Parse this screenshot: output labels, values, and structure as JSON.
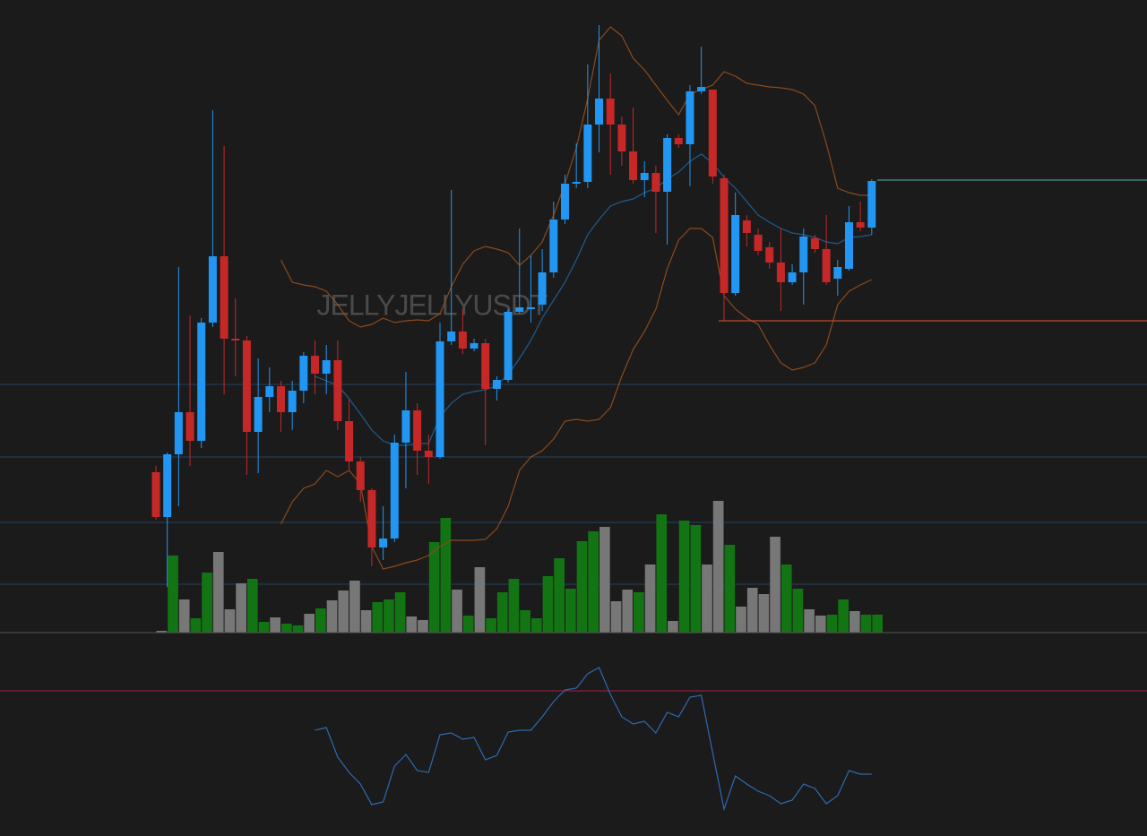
{
  "chart_data": {
    "type": "candlestick",
    "watermark": "JELLYJELLYUSDT",
    "ylim": [
      67,
      1000
    ],
    "up_color": "#2196f3",
    "down_color": "#c62828",
    "open": [
      473,
      423,
      493,
      540,
      508,
      640,
      714,
      622,
      620,
      518,
      557,
      569,
      540,
      564,
      603,
      583,
      598,
      530,
      485,
      453,
      389,
      399,
      506,
      542,
      497,
      490,
      619,
      630,
      611,
      617,
      566,
      576,
      652,
      655,
      660,
      696,
      755,
      795,
      797,
      861,
      890,
      861,
      831,
      799,
      807,
      786,
      846,
      839,
      898,
      900,
      801,
      673,
      754,
      738,
      724,
      707,
      685,
      696,
      734,
      722,
      689,
      700,
      752,
      746
    ],
    "high": [
      480,
      495,
      702,
      648,
      645,
      877,
      837,
      667,
      625,
      600,
      590,
      575,
      575,
      607,
      620,
      615,
      620,
      555,
      490,
      455,
      435,
      515,
      585,
      550,
      515,
      640,
      788,
      655,
      622,
      622,
      580,
      655,
      745,
      715,
      722,
      775,
      805,
      840,
      928,
      972,
      918,
      870,
      880,
      820,
      815,
      850,
      850,
      905,
      948,
      900,
      805,
      785,
      760,
      745,
      730,
      745,
      705,
      745,
      738,
      760,
      710,
      770,
      775,
      800
    ],
    "low": [
      420,
      345,
      435,
      480,
      500,
      635,
      560,
      580,
      470,
      472,
      540,
      518,
      520,
      550,
      560,
      560,
      520,
      475,
      440,
      368,
      375,
      395,
      455,
      470,
      460,
      488,
      615,
      605,
      608,
      503,
      553,
      573,
      650,
      640,
      653,
      690,
      750,
      790,
      790,
      830,
      805,
      815,
      795,
      780,
      740,
      727,
      835,
      792,
      895,
      795,
      642,
      670,
      725,
      715,
      700,
      653,
      682,
      660,
      718,
      682,
      670,
      698,
      742,
      738
    ],
    "close": [
      423,
      493,
      540,
      508,
      640,
      714,
      622,
      620,
      518,
      557,
      569,
      540,
      564,
      603,
      583,
      598,
      530,
      485,
      453,
      389,
      399,
      506,
      542,
      497,
      490,
      619,
      630,
      611,
      617,
      566,
      576,
      652,
      657,
      657,
      696,
      755,
      795,
      797,
      861,
      890,
      861,
      831,
      799,
      807,
      786,
      846,
      839,
      898,
      903,
      803,
      673,
      760,
      740,
      720,
      707,
      685,
      696,
      736,
      722,
      685,
      702,
      752,
      746,
      798
    ],
    "volume_ylim": [
      0,
      706
    ],
    "volume": [
      2,
      86,
      37,
      16,
      67,
      90,
      26,
      55,
      60,
      12,
      17,
      10,
      8,
      21,
      27,
      36,
      47,
      58,
      25,
      34,
      37,
      45,
      18,
      14,
      101,
      128,
      48,
      19,
      73,
      16,
      45,
      60,
      25,
      16,
      63,
      83,
      49,
      102,
      113,
      118,
      35,
      48,
      45,
      76,
      132,
      13,
      125,
      120,
      76,
      147,
      98,
      29,
      50,
      43,
      107,
      76,
      49,
      26,
      19,
      20,
      37,
      24,
      20,
      20
    ],
    "volume_colors": [
      "#777777",
      "#137413",
      "#777777",
      "#137413",
      "#137413",
      "#777777",
      "#777777",
      "#777777",
      "#137413",
      "#137413",
      "#777777",
      "#137413",
      "#137413",
      "#777777",
      "#137413",
      "#777777",
      "#777777",
      "#777777",
      "#777777",
      "#137413",
      "#137413",
      "#137413",
      "#777777",
      "#777777",
      "#137413",
      "#137413",
      "#777777",
      "#137413",
      "#777777",
      "#137413",
      "#137413",
      "#137413",
      "#137413",
      "#137413",
      "#137413",
      "#137413",
      "#137413",
      "#137413",
      "#137413",
      "#777777",
      "#777777",
      "#777777",
      "#137413",
      "#777777",
      "#137413",
      "#777777",
      "#137413",
      "#137413",
      "#777777",
      "#777777",
      "#137413",
      "#777777",
      "#777777",
      "#777777",
      "#777777",
      "#137413",
      "#137413",
      "#777777",
      "#777777",
      "#137413",
      "#137413",
      "#777777",
      "#137413",
      "#137413"
    ],
    "bb_color": "#8a4a1c",
    "bb_upper": [
      null,
      null,
      null,
      null,
      null,
      null,
      null,
      null,
      null,
      null,
      null,
      710,
      685,
      682,
      680,
      675,
      660,
      642,
      635,
      638,
      645,
      640,
      642,
      643,
      642,
      650,
      680,
      705,
      720,
      725,
      722,
      718,
      704,
      715,
      730,
      760,
      795,
      835,
      890,
      955,
      970,
      960,
      935,
      922,
      905,
      888,
      872,
      895,
      900,
      905,
      920,
      915,
      907,
      905,
      903,
      902,
      900,
      895,
      882,
      840,
      790,
      785,
      782,
      782
    ],
    "bb_lower": [
      null,
      null,
      null,
      null,
      null,
      null,
      null,
      null,
      null,
      null,
      null,
      415,
      440,
      455,
      460,
      475,
      468,
      475,
      460,
      390,
      365,
      368,
      372,
      375,
      380,
      390,
      397,
      397,
      397,
      398,
      410,
      435,
      475,
      490,
      497,
      510,
      530,
      532,
      530,
      532,
      545,
      580,
      610,
      630,
      655,
      700,
      732,
      745,
      745,
      735,
      670,
      655,
      645,
      638,
      615,
      595,
      587,
      590,
      595,
      615,
      660,
      675,
      682,
      688
    ],
    "ma_color": "#1f5c8f",
    "bb_middle": [
      null,
      null,
      null,
      null,
      null,
      null,
      null,
      null,
      null,
      null,
      null,
      null,
      null,
      null,
      580,
      575,
      570,
      555,
      538,
      520,
      508,
      503,
      503,
      505,
      505,
      535,
      550,
      560,
      563,
      565,
      570,
      582,
      600,
      620,
      645,
      665,
      685,
      710,
      738,
      755,
      770,
      775,
      778,
      785,
      790,
      800,
      808,
      820,
      828,
      818,
      802,
      790,
      775,
      760,
      752,
      745,
      740,
      738,
      735,
      730,
      728,
      735,
      736,
      738
    ],
    "grid_levels": [
      571,
      490,
      417,
      348
    ],
    "grid_color": "#23435f",
    "price_lines": [
      {
        "value": 799,
        "color": "#4db6ac"
      },
      {
        "value": 642,
        "color": "#e0552b"
      }
    ],
    "rsi_color": "#2d6bb0",
    "rsi_level": {
      "value": 229,
      "color": "#a3204a"
    },
    "rsi": [
      null,
      null,
      null,
      null,
      null,
      null,
      null,
      null,
      null,
      null,
      null,
      null,
      null,
      null,
      185,
      188,
      155,
      138,
      125,
      102,
      105,
      145,
      158,
      140,
      138,
      180,
      182,
      175,
      177,
      152,
      157,
      183,
      185,
      185,
      200,
      217,
      230,
      232,
      248,
      255,
      225,
      200,
      192,
      195,
      182,
      205,
      200,
      222,
      224,
      160,
      97,
      134,
      125,
      117,
      112,
      103,
      107,
      125,
      120,
      103,
      112,
      140,
      136,
      136
    ]
  }
}
